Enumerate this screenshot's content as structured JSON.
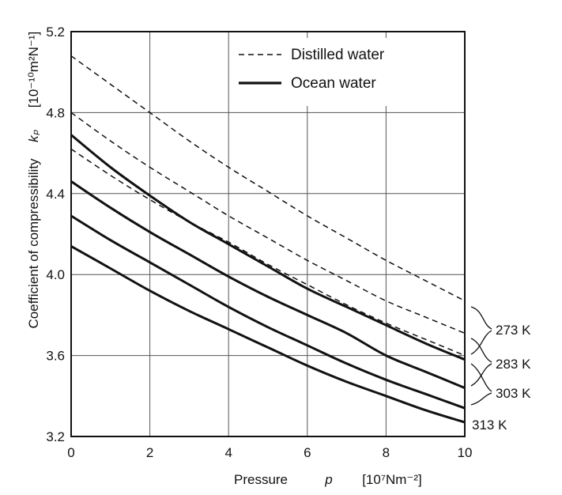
{
  "chart_data": {
    "type": "line",
    "xlabel": "Pressure",
    "xsymbol": "p",
    "xunit": "[10⁷Nm⁻²]",
    "ylabel": "Coefficient of compressibility",
    "ysymbol": "kₚ",
    "yunit": "[10⁻¹⁰m²N⁻¹]",
    "xlim": [
      0,
      10
    ],
    "ylim": [
      3.2,
      5.2
    ],
    "xticks": [
      0,
      2,
      4,
      6,
      8,
      10
    ],
    "xtick_labels": [
      "0",
      "2",
      "4",
      "6",
      "8",
      "10"
    ],
    "yticks": [
      3.2,
      3.6,
      4.0,
      4.4,
      4.8,
      5.2
    ],
    "ytick_labels": [
      "3.2",
      "3.6",
      "4.0",
      "4.4",
      "4.8",
      "5.2"
    ],
    "grid": true,
    "legend": [
      {
        "label": "Distilled water",
        "style": "dashed"
      },
      {
        "label": "Ocean water",
        "style": "solid"
      }
    ],
    "x": [
      0,
      1,
      2,
      3,
      4,
      5,
      6,
      7,
      8,
      9,
      10
    ],
    "series": [
      {
        "name": "Distilled water 273 K",
        "style": "dashed",
        "temp": "273 K",
        "values": [
          5.08,
          4.94,
          4.8,
          4.66,
          4.53,
          4.41,
          4.29,
          4.18,
          4.07,
          3.97,
          3.87
        ]
      },
      {
        "name": "Distilled water 283 K",
        "style": "dashed",
        "temp": "283 K",
        "values": [
          4.8,
          4.66,
          4.53,
          4.41,
          4.29,
          4.18,
          4.07,
          3.97,
          3.87,
          3.79,
          3.71
        ]
      },
      {
        "name": "Distilled water 303 K",
        "style": "dashed",
        "temp": "303 K",
        "values": [
          4.62,
          4.49,
          4.37,
          4.26,
          4.16,
          4.05,
          3.95,
          3.85,
          3.76,
          3.68,
          3.6
        ]
      },
      {
        "name": "Ocean water 273 K",
        "style": "solid",
        "temp": "273 K",
        "values": [
          4.69,
          4.53,
          4.39,
          4.26,
          4.15,
          4.04,
          3.93,
          3.84,
          3.75,
          3.66,
          3.58
        ]
      },
      {
        "name": "Ocean water 283 K",
        "style": "solid",
        "temp": "283 K",
        "values": [
          4.46,
          4.33,
          4.21,
          4.1,
          3.99,
          3.89,
          3.8,
          3.71,
          3.6,
          3.52,
          3.44
        ]
      },
      {
        "name": "Ocean water 303 K",
        "style": "solid",
        "temp": "303 K",
        "values": [
          4.29,
          4.17,
          4.06,
          3.95,
          3.84,
          3.74,
          3.65,
          3.56,
          3.48,
          3.41,
          3.34
        ]
      },
      {
        "name": "Ocean water 313 K",
        "style": "solid",
        "temp": "313 K",
        "values": [
          4.14,
          4.03,
          3.92,
          3.82,
          3.73,
          3.64,
          3.55,
          3.47,
          3.4,
          3.33,
          3.27
        ]
      }
    ],
    "temperature_labels": [
      "273 K",
      "283 K",
      "303 K",
      "313 K"
    ]
  }
}
